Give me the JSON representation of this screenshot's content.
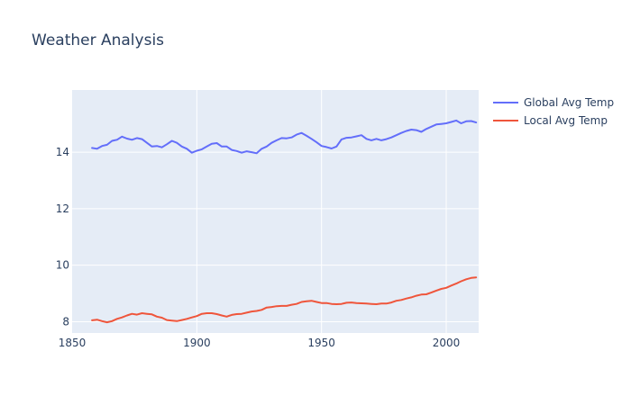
{
  "chart_data": {
    "type": "line",
    "title": "Weather Analysis",
    "xlabel": "",
    "ylabel": "",
    "xlim": [
      1850,
      2013
    ],
    "ylim": [
      7.6,
      16.2
    ],
    "x_ticks": [
      1850,
      1900,
      1950,
      2000
    ],
    "y_ticks": [
      8,
      10,
      12,
      14
    ],
    "grid": true,
    "legend_position": "top-right",
    "plot_background": "#e5ecf6",
    "series": [
      {
        "name": "Global Avg Temp",
        "color": "#636efa",
        "x": [
          1858,
          1860,
          1862,
          1864,
          1866,
          1868,
          1870,
          1872,
          1874,
          1876,
          1878,
          1880,
          1882,
          1884,
          1886,
          1888,
          1890,
          1892,
          1894,
          1896,
          1898,
          1900,
          1902,
          1904,
          1906,
          1908,
          1910,
          1912,
          1914,
          1916,
          1918,
          1920,
          1922,
          1924,
          1926,
          1928,
          1930,
          1932,
          1934,
          1936,
          1938,
          1940,
          1942,
          1944,
          1946,
          1948,
          1950,
          1952,
          1954,
          1956,
          1958,
          1960,
          1962,
          1964,
          1966,
          1968,
          1970,
          1972,
          1974,
          1976,
          1978,
          1980,
          1982,
          1984,
          1986,
          1988,
          1990,
          1992,
          1994,
          1996,
          1998,
          2000,
          2002,
          2004,
          2006,
          2008,
          2010,
          2012
        ],
        "y": [
          14.15,
          14.12,
          14.22,
          14.26,
          14.4,
          14.44,
          14.55,
          14.48,
          14.44,
          14.5,
          14.46,
          14.33,
          14.2,
          14.22,
          14.17,
          14.28,
          14.4,
          14.33,
          14.2,
          14.12,
          13.98,
          14.05,
          14.1,
          14.2,
          14.3,
          14.32,
          14.2,
          14.2,
          14.08,
          14.04,
          13.98,
          14.03,
          14.0,
          13.96,
          14.12,
          14.2,
          14.33,
          14.42,
          14.5,
          14.49,
          14.52,
          14.62,
          14.68,
          14.58,
          14.47,
          14.35,
          14.22,
          14.18,
          14.13,
          14.2,
          14.45,
          14.51,
          14.52,
          14.56,
          14.6,
          14.47,
          14.42,
          14.47,
          14.42,
          14.46,
          14.52,
          14.6,
          14.68,
          14.75,
          14.8,
          14.78,
          14.72,
          14.82,
          14.9,
          14.98,
          15.0,
          15.02,
          15.07,
          15.12,
          15.02,
          15.09,
          15.1,
          15.05
        ]
      },
      {
        "name": "Local Avg Temp",
        "color": "#ef553b",
        "x": [
          1858,
          1860,
          1862,
          1864,
          1866,
          1868,
          1870,
          1872,
          1874,
          1876,
          1878,
          1880,
          1882,
          1884,
          1886,
          1888,
          1890,
          1892,
          1894,
          1896,
          1898,
          1900,
          1902,
          1904,
          1906,
          1908,
          1910,
          1912,
          1914,
          1916,
          1918,
          1920,
          1922,
          1924,
          1926,
          1928,
          1930,
          1932,
          1934,
          1936,
          1938,
          1940,
          1942,
          1944,
          1946,
          1948,
          1950,
          1952,
          1954,
          1956,
          1958,
          1960,
          1962,
          1964,
          1966,
          1968,
          1970,
          1972,
          1974,
          1976,
          1978,
          1980,
          1982,
          1984,
          1986,
          1988,
          1990,
          1992,
          1994,
          1996,
          1998,
          2000,
          2002,
          2004,
          2006,
          2008,
          2010,
          2012
        ],
        "y": [
          8.05,
          8.07,
          8.02,
          7.98,
          8.02,
          8.1,
          8.15,
          8.22,
          8.28,
          8.25,
          8.3,
          8.28,
          8.26,
          8.18,
          8.14,
          8.06,
          8.04,
          8.02,
          8.06,
          8.1,
          8.15,
          8.2,
          8.28,
          8.3,
          8.3,
          8.27,
          8.22,
          8.18,
          8.24,
          8.27,
          8.28,
          8.32,
          8.36,
          8.38,
          8.42,
          8.5,
          8.52,
          8.55,
          8.56,
          8.56,
          8.6,
          8.63,
          8.7,
          8.72,
          8.74,
          8.7,
          8.66,
          8.66,
          8.63,
          8.62,
          8.63,
          8.67,
          8.68,
          8.66,
          8.65,
          8.64,
          8.63,
          8.62,
          8.64,
          8.64,
          8.68,
          8.74,
          8.77,
          8.82,
          8.86,
          8.92,
          8.96,
          8.97,
          9.03,
          9.1,
          9.16,
          9.2,
          9.28,
          9.35,
          9.43,
          9.5,
          9.55,
          9.57
        ]
      }
    ]
  }
}
